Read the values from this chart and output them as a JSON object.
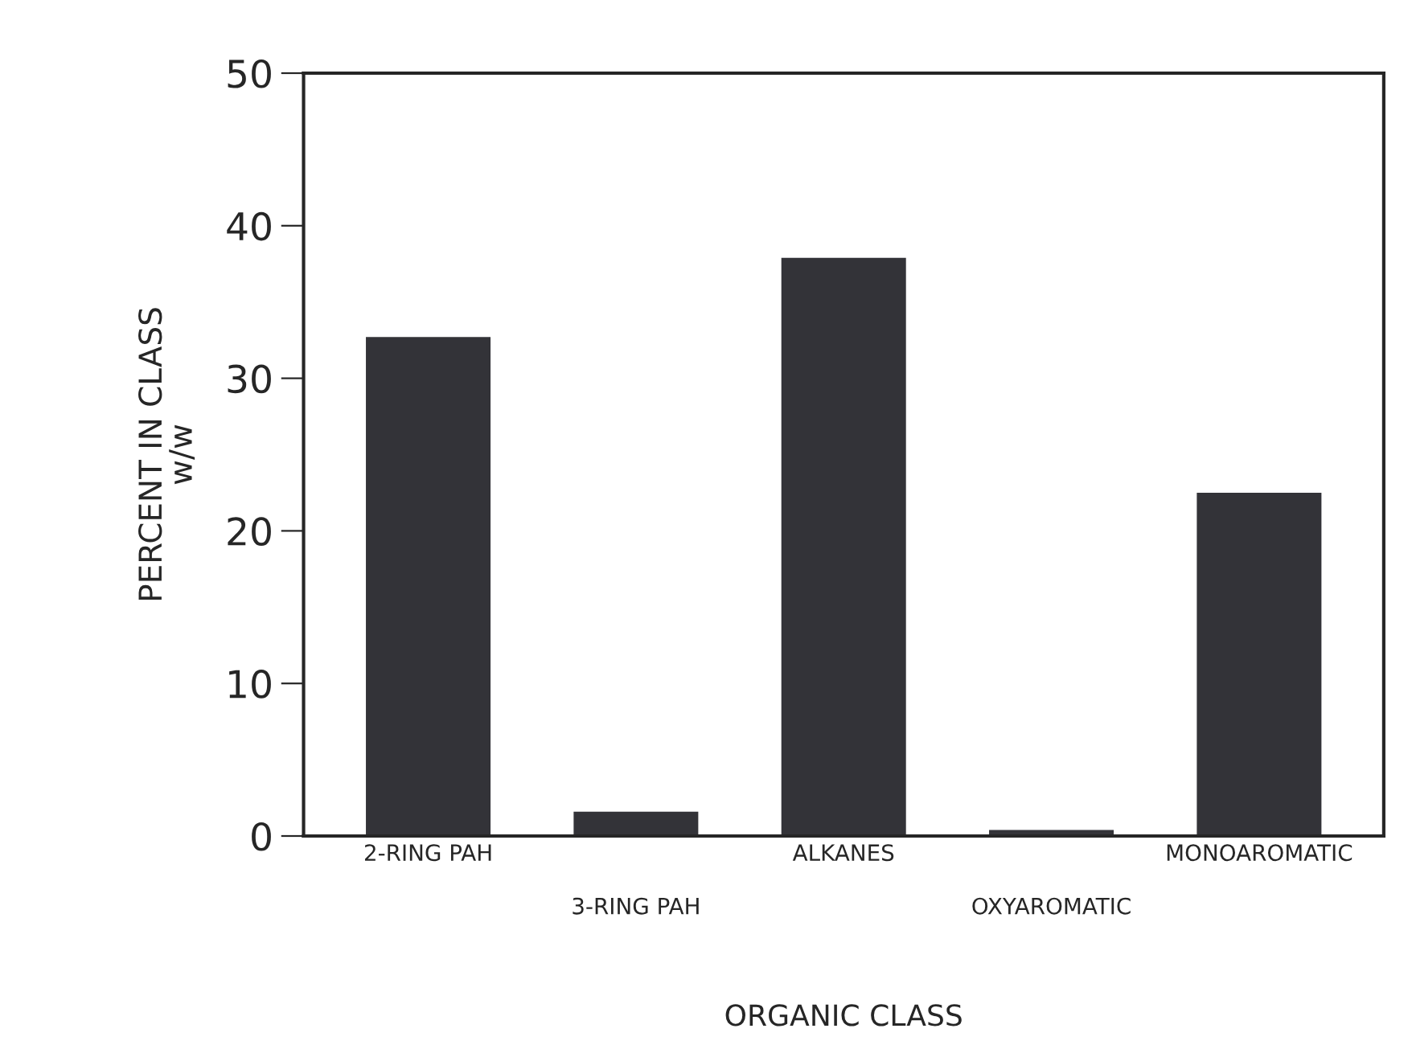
{
  "chart_data": {
    "type": "bar",
    "xlabel": "ORGANIC CLASS",
    "ylabel": "PERCENT IN CLASS\nw/w",
    "categories": [
      "2-RING PAH",
      "3-RING PAH",
      "ALKANES",
      "OXYAROMATIC",
      "MONOAROMATIC"
    ],
    "values": [
      32.7,
      1.6,
      37.9,
      0.4,
      22.5
    ],
    "color": "#333338",
    "ylim": [
      0,
      50
    ],
    "yticks": [
      0,
      10,
      20,
      30,
      40,
      50
    ],
    "grid": false
  }
}
